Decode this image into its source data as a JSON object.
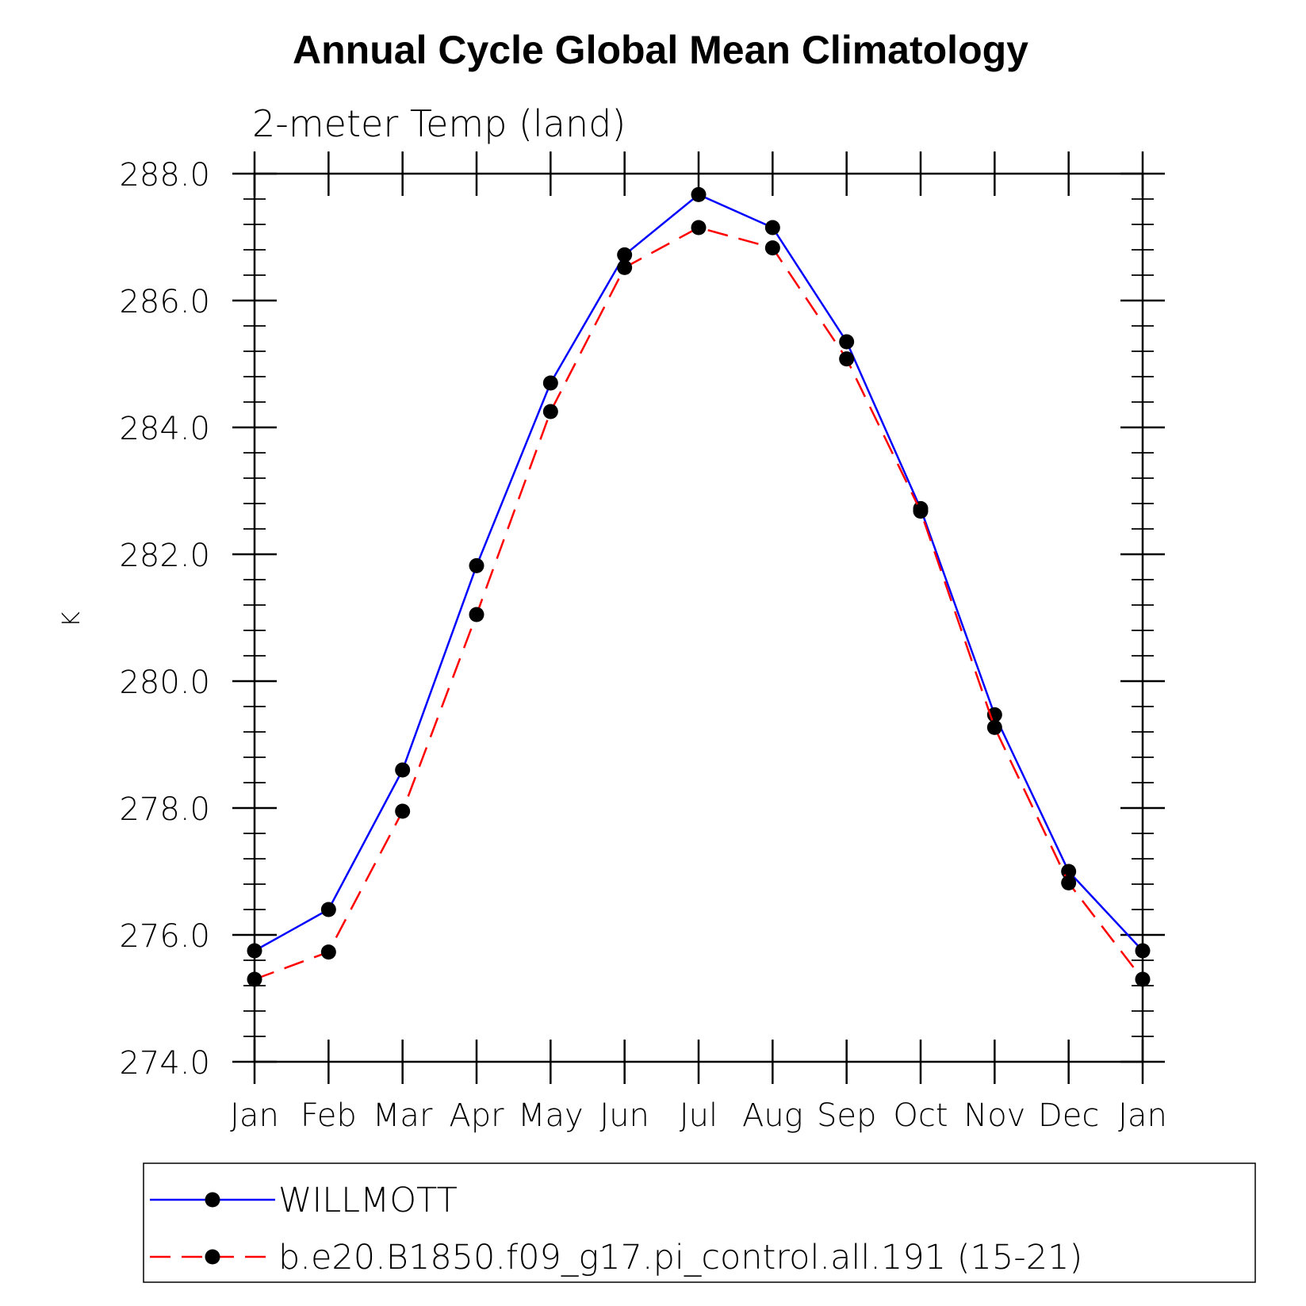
{
  "chart_data": {
    "type": "line",
    "title": "Annual Cycle Global Mean Climatology",
    "subtitle": "2-meter Temp (land)",
    "xlabel": "",
    "ylabel": "K",
    "categories": [
      "Jan",
      "Feb",
      "Mar",
      "Apr",
      "May",
      "Jun",
      "Jul",
      "Aug",
      "Sep",
      "Oct",
      "Nov",
      "Dec",
      "Jan"
    ],
    "ylim": [
      274.0,
      288.0
    ],
    "yticks": [
      "274.0",
      "276.0",
      "278.0",
      "280.0",
      "282.0",
      "284.0",
      "286.0",
      "288.0"
    ],
    "grid": false,
    "legend_position": "bottom",
    "series": [
      {
        "name": "WILLMOTT",
        "color": "#0000ff",
        "line_style": "solid",
        "marker": "filled-circle",
        "values": [
          275.75,
          276.4,
          278.6,
          281.82,
          284.7,
          286.72,
          287.67,
          287.15,
          285.35,
          282.72,
          279.47,
          277.0,
          275.75
        ]
      },
      {
        "name": "b.e20.B1850.f09_g17.pi_control.all.191 (15-21)",
        "color": "#ff0000",
        "line_style": "dashed",
        "marker": "filled-circle",
        "values": [
          275.3,
          275.73,
          277.95,
          281.05,
          284.25,
          286.52,
          287.15,
          286.83,
          285.08,
          282.68,
          279.27,
          276.82,
          275.3
        ]
      }
    ]
  }
}
